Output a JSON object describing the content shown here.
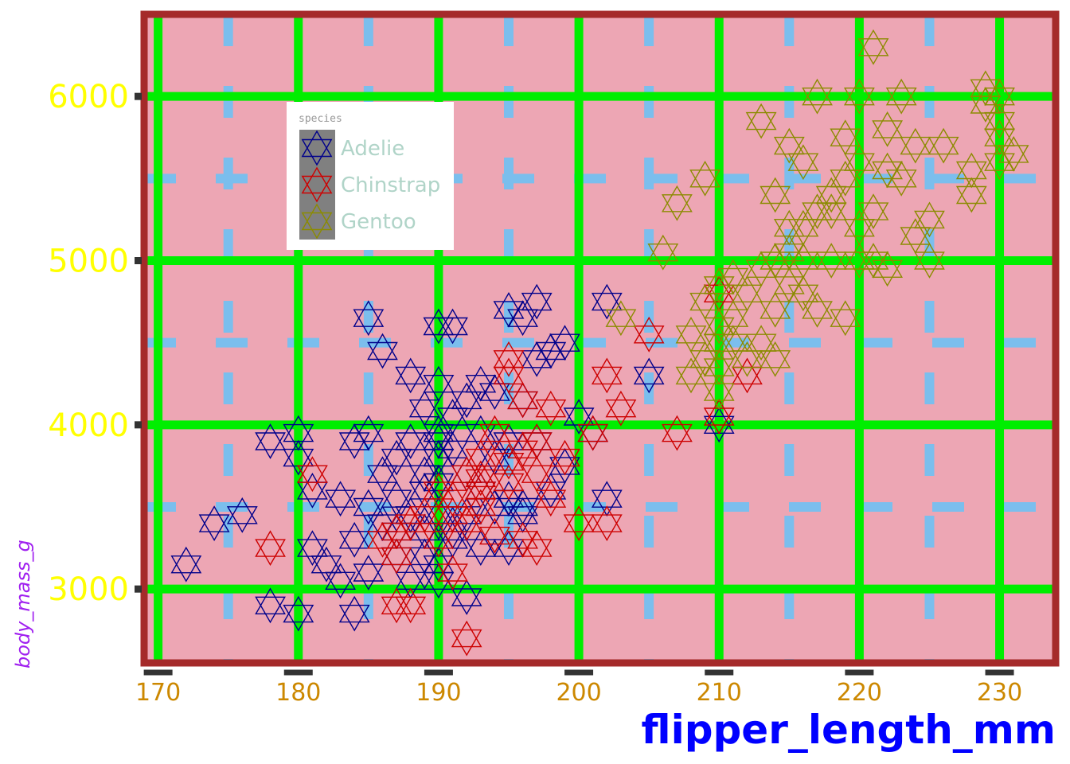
{
  "chart_data": {
    "type": "scatter",
    "title": "",
    "xlabel": "flipper_length_mm",
    "ylabel": "body_mass_g",
    "xlim": [
      169,
      234
    ],
    "ylim": [
      2550,
      6500
    ],
    "x_ticks": [
      170,
      180,
      190,
      200,
      210,
      220,
      230
    ],
    "y_ticks": [
      3000,
      4000,
      5000,
      6000
    ],
    "grid": true,
    "marker": "hexagram",
    "legend": {
      "title": "species",
      "position": "top-left"
    },
    "colors": {
      "panel_background": "#eda6b4",
      "panel_border": "#a52a2a",
      "major_grid": "#00ee00",
      "minor_grid": "#7bbeed",
      "Adelie": "#00008b",
      "Chinstrap": "#cd0000",
      "Gentoo": "#8b8b00",
      "legend_key_fill": "#808080"
    },
    "series": [
      {
        "name": "Adelie",
        "x": [
          172,
          174,
          176,
          178,
          178,
          180,
          180,
          180,
          181,
          181,
          182,
          183,
          183,
          184,
          184,
          184,
          185,
          185,
          185,
          185,
          186,
          186,
          186,
          187,
          187,
          187,
          187,
          188,
          188,
          188,
          188,
          189,
          189,
          189,
          189,
          189,
          190,
          190,
          190,
          190,
          190,
          190,
          190,
          190,
          190,
          191,
          191,
          191,
          191,
          191,
          192,
          192,
          192,
          192,
          193,
          193,
          193,
          193,
          194,
          194,
          194,
          195,
          195,
          195,
          195,
          196,
          196,
          196,
          196,
          197,
          197,
          197,
          198,
          198,
          199,
          199,
          200,
          201,
          202,
          202,
          205,
          210
        ],
        "y": [
          3150,
          3400,
          3450,
          3900,
          2900,
          3950,
          3800,
          2850,
          3600,
          3250,
          3150,
          3050,
          3550,
          3900,
          3300,
          2850,
          4650,
          3950,
          3500,
          3100,
          4450,
          3400,
          3700,
          3550,
          3200,
          3800,
          3350,
          4300,
          3450,
          3900,
          3050,
          4100,
          3700,
          3350,
          3600,
          3200,
          3950,
          4250,
          3650,
          3450,
          3150,
          3900,
          3050,
          4600,
          3800,
          4600,
          3850,
          3350,
          3300,
          4050,
          3700,
          3450,
          2950,
          4150,
          4250,
          3950,
          3600,
          3250,
          3800,
          3500,
          4200,
          4700,
          3900,
          3550,
          3250,
          4650,
          4150,
          3500,
          3450,
          4400,
          3900,
          4750,
          4450,
          3600,
          4500,
          3750,
          4050,
          3950,
          3550,
          4750,
          4300,
          4000
        ]
      },
      {
        "name": "Chinstrap",
        "x": [
          178,
          181,
          186,
          187,
          187,
          187,
          188,
          188,
          189,
          190,
          190,
          191,
          191,
          191,
          192,
          192,
          192,
          193,
          193,
          193,
          193,
          194,
          194,
          195,
          195,
          195,
          195,
          196,
          196,
          196,
          197,
          197,
          197,
          198,
          198,
          199,
          200,
          201,
          202,
          202,
          203,
          205,
          207,
          210,
          210,
          212
        ],
        "y": [
          3250,
          3700,
          3300,
          3200,
          3350,
          2900,
          3400,
          2900,
          3450,
          3600,
          3300,
          3450,
          3550,
          3100,
          3400,
          3700,
          2700,
          3800,
          3600,
          3500,
          3675,
          3950,
          3325,
          4400,
          3650,
          3775,
          4300,
          3850,
          4150,
          3300,
          3700,
          3250,
          3900,
          3550,
          4100,
          3800,
          3400,
          3950,
          3400,
          4300,
          4100,
          4550,
          3950,
          4800,
          4050,
          4300
        ]
      },
      {
        "name": "Gentoo",
        "x": [
          203,
          206,
          207,
          208,
          208,
          209,
          209,
          209,
          210,
          210,
          210,
          210,
          210,
          211,
          211,
          211,
          212,
          212,
          213,
          213,
          213,
          214,
          214,
          214,
          214,
          215,
          215,
          215,
          215,
          216,
          216,
          216,
          216,
          217,
          217,
          217,
          218,
          218,
          218,
          219,
          219,
          219,
          220,
          220,
          220,
          220,
          221,
          221,
          221,
          222,
          222,
          222,
          223,
          223,
          224,
          224,
          225,
          225,
          226,
          228,
          228,
          229,
          229,
          230,
          230,
          230,
          230,
          231
        ],
        "y": [
          4650,
          5050,
          5350,
          4300,
          4550,
          5500,
          4400,
          4750,
          4600,
          4850,
          4350,
          4200,
          4500,
          4500,
          4650,
          4900,
          4800,
          4400,
          5850,
          4950,
          4500,
          5000,
          5400,
          4700,
          4400,
          5700,
          5200,
          5050,
          4850,
          5200,
          4800,
          5000,
          5600,
          6000,
          4700,
          5300,
          5300,
          5000,
          5400,
          5500,
          4650,
          5750,
          5200,
          6000,
          5600,
          5000,
          6300,
          5300,
          5000,
          5550,
          5800,
          4950,
          6000,
          5500,
          5700,
          5150,
          5250,
          5000,
          5700,
          5550,
          5400,
          5950,
          6050,
          6000,
          5750,
          5600,
          5850,
          5650
        ]
      }
    ]
  }
}
